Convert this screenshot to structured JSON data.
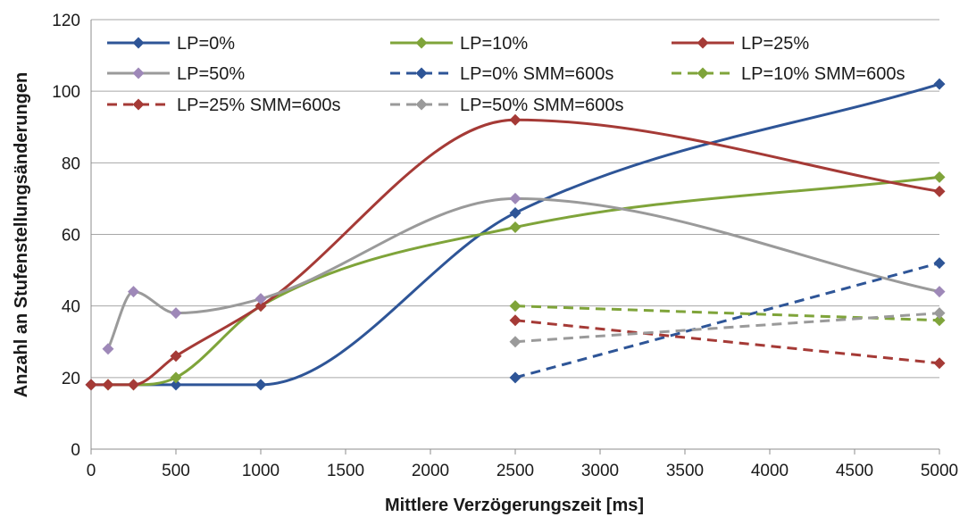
{
  "chart_data": {
    "type": "line",
    "xlabel": "Mittlere Verzögerungszeit [ms]",
    "ylabel": "Anzahl an Stufenstellungsänderungen",
    "xlim": [
      0,
      5000
    ],
    "ylim": [
      0,
      120
    ],
    "x_ticks": [
      "0",
      "500",
      "1000",
      "1500",
      "2000",
      "2500",
      "3000",
      "3500",
      "4000",
      "4500",
      "5000"
    ],
    "y_ticks": [
      "0",
      "20",
      "40",
      "60",
      "80",
      "100",
      "120"
    ],
    "grid": "horizontal",
    "legend_position": "top",
    "series": [
      {
        "name": "LP=0%",
        "color": "#2e5597",
        "dash": "solid",
        "smooth": true,
        "x": [
          0,
          500,
          1000,
          2500,
          5000
        ],
        "y": [
          18,
          18,
          18,
          66,
          102
        ]
      },
      {
        "name": "LP=10%",
        "color": "#7fa43a",
        "dash": "solid",
        "smooth": true,
        "x": [
          100,
          250,
          500,
          1000,
          2500,
          5000
        ],
        "y": [
          18,
          18,
          20,
          40,
          62,
          76
        ]
      },
      {
        "name": "LP=25%",
        "color": "#a53a36",
        "dash": "solid",
        "smooth": true,
        "x": [
          0,
          100,
          250,
          500,
          1000,
          2500,
          5000
        ],
        "y": [
          18,
          18,
          18,
          26,
          40,
          92,
          72
        ]
      },
      {
        "name": "LP=50%",
        "color": "#9a9a9a",
        "dash": "solid",
        "smooth": true,
        "marker_color": "#9e88b8",
        "x": [
          100,
          250,
          500,
          1000,
          2500,
          5000
        ],
        "y": [
          28,
          44,
          38,
          42,
          70,
          44
        ]
      },
      {
        "name": "LP=0% SMM=600s",
        "color": "#2e5597",
        "dash": "dashed",
        "smooth": false,
        "x": [
          2500,
          5000
        ],
        "y": [
          20,
          52
        ]
      },
      {
        "name": "LP=10% SMM=600s",
        "color": "#7fa43a",
        "dash": "dashed",
        "smooth": false,
        "x": [
          2500,
          5000
        ],
        "y": [
          40,
          36
        ]
      },
      {
        "name": "LP=25% SMM=600s",
        "color": "#a53a36",
        "dash": "dashed",
        "smooth": false,
        "x": [
          2500,
          5000
        ],
        "y": [
          36,
          24
        ]
      },
      {
        "name": "LP=50% SMM=600s",
        "color": "#9a9a9a",
        "dash": "dashed",
        "smooth": false,
        "x": [
          2500,
          5000
        ],
        "y": [
          30,
          38
        ]
      }
    ]
  }
}
